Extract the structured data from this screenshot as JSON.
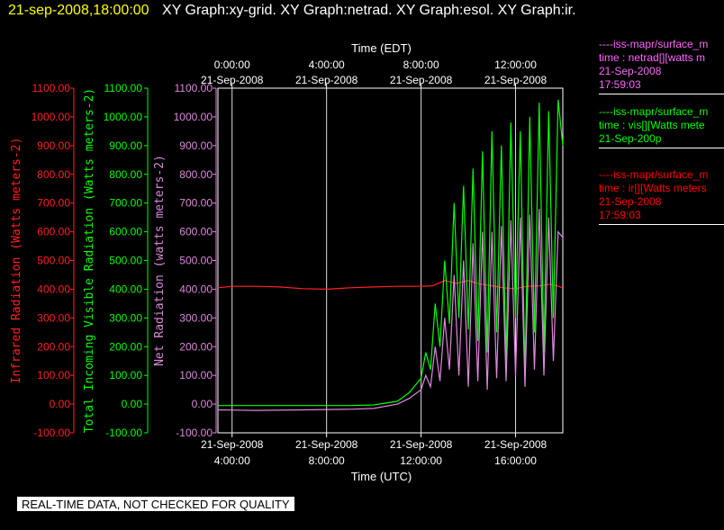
{
  "header": {
    "timestamp": "21-sep-2008,18:00:00",
    "title": "XY Graph:xy-grid.  XY Graph:netrad.  XY Graph:esol.  XY Graph:ir."
  },
  "footer": "REAL-TIME DATA, NOT CHECKED FOR QUALITY",
  "legend": [
    {
      "line1": "----iss-mapr/surface_m",
      "line2": "time : netrad[][watts m",
      "line3": "21-Sep-2008",
      "line4": "17:59:03",
      "color": "#ff66ff"
    },
    {
      "line1": "----iss-mapr/surface_m",
      "line2": "time : vis[][Watts mete",
      "line3": "21-Sep-200p",
      "line4": "",
      "color": "#00ff00"
    },
    {
      "line1": "----iss-mapr/surface_m",
      "line2": "time : ir[][Watts meters",
      "line3": "21-Sep-2008",
      "line4": "17:59:03",
      "color": "#ff0000"
    }
  ],
  "colors": {
    "netrad": "#dd88dd",
    "vis": "#00ff00",
    "ir": "#ff2020",
    "grid": "#ffffff"
  },
  "chart_data": {
    "type": "line",
    "top_axis_title": "Time (EDT)",
    "bottom_axis_title": "Time (UTC)",
    "top_ticks": [
      {
        "line1": "0:00:00",
        "line2": "21-Sep-2008"
      },
      {
        "line1": "4:00:00",
        "line2": "21-Sep-2008"
      },
      {
        "line1": "8:00:00",
        "line2": "21-Sep-2008"
      },
      {
        "line1": "12:00:00",
        "line2": "21-Sep-2008"
      }
    ],
    "bottom_ticks": [
      {
        "line1": "21-Sep-2008",
        "line2": "4:00:00"
      },
      {
        "line1": "21-Sep-2008",
        "line2": "8:00:00"
      },
      {
        "line1": "21-Sep-2008",
        "line2": "12:00:00"
      },
      {
        "line1": "21-Sep-2008",
        "line2": "16:00:00"
      }
    ],
    "x_utc_hours_range": [
      3.4,
      18.0
    ],
    "x_tick_utc_hours": [
      4,
      8,
      12,
      16
    ],
    "ylim": [
      -100,
      1100
    ],
    "y_ticks": [
      "1100.00",
      "1000.00",
      "900.00",
      "800.00",
      "700.00",
      "600.00",
      "500.00",
      "400.00",
      "300.00",
      "200.00",
      "100.00",
      "0.00",
      "-100.00"
    ],
    "y_axes": [
      {
        "label": "Infrared Radiation (Watts meters-2)",
        "color": "#ff2020"
      },
      {
        "label": "Total Incoming Visible Radiation (Watts meters-2)",
        "color": "#00ff00"
      },
      {
        "label": "Net Radiation (watts meters-2)",
        "color": "#dd88dd"
      }
    ],
    "series": [
      {
        "name": "ir",
        "color": "#ff2020",
        "x": [
          3.4,
          4.0,
          5.0,
          6.0,
          7.0,
          8.0,
          9.0,
          10.0,
          11.0,
          12.0,
          12.5,
          13.0,
          13.5,
          14.0,
          14.5,
          15.0,
          15.5,
          16.0,
          16.5,
          17.0,
          17.5,
          18.0
        ],
        "y": [
          405,
          410,
          410,
          408,
          402,
          400,
          405,
          408,
          410,
          410,
          412,
          430,
          420,
          430,
          418,
          412,
          405,
          402,
          410,
          412,
          418,
          405
        ]
      },
      {
        "name": "vis",
        "color": "#00ff00",
        "x": [
          3.4,
          5.0,
          7.0,
          9.0,
          10.0,
          11.0,
          11.5,
          12.0,
          12.2,
          12.4,
          12.6,
          12.8,
          13.0,
          13.2,
          13.4,
          13.6,
          13.8,
          14.0,
          14.2,
          14.4,
          14.6,
          14.8,
          15.0,
          15.2,
          15.4,
          15.6,
          15.8,
          16.0,
          16.2,
          16.4,
          16.6,
          16.8,
          17.0,
          17.2,
          17.4,
          17.6,
          17.8,
          18.0
        ],
        "y": [
          -5,
          -5,
          -5,
          -5,
          -3,
          10,
          40,
          90,
          180,
          120,
          350,
          200,
          500,
          280,
          700,
          300,
          760,
          260,
          820,
          220,
          880,
          180,
          950,
          250,
          900,
          150,
          980,
          300,
          950,
          100,
          1000,
          250,
          1050,
          180,
          1020,
          300,
          1060,
          900
        ]
      },
      {
        "name": "netrad",
        "color": "#dd88dd",
        "x": [
          3.4,
          5.0,
          7.0,
          9.0,
          10.0,
          11.0,
          11.5,
          12.0,
          12.2,
          12.4,
          12.6,
          12.8,
          13.0,
          13.2,
          13.4,
          13.6,
          13.8,
          14.0,
          14.2,
          14.4,
          14.6,
          14.8,
          15.0,
          15.2,
          15.4,
          15.6,
          15.8,
          16.0,
          16.2,
          16.4,
          16.6,
          16.8,
          17.0,
          17.2,
          17.4,
          17.6,
          17.8,
          18.0
        ],
        "y": [
          -20,
          -22,
          -20,
          -18,
          -15,
          0,
          20,
          50,
          100,
          60,
          200,
          80,
          300,
          120,
          450,
          100,
          500,
          60,
          560,
          80,
          600,
          50,
          600,
          90,
          620,
          80,
          640,
          100,
          650,
          60,
          660,
          120,
          680,
          100,
          650,
          150,
          600,
          580
        ]
      }
    ]
  }
}
